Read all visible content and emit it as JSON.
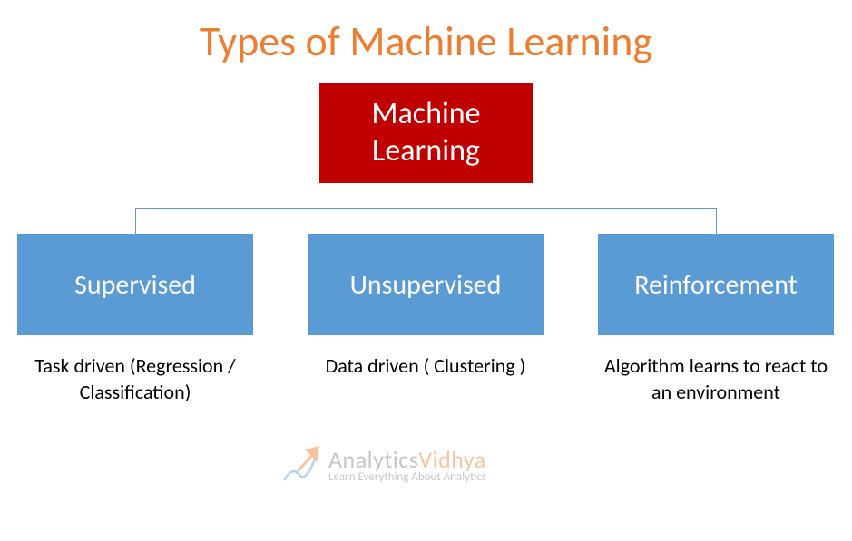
{
  "diagram": {
    "type": "tree",
    "title": "Types of Machine Learning",
    "title_color": "#ed7d31",
    "title_fontsize": 46,
    "background_color": "#ffffff",
    "connector_color": "#5b9bd5",
    "root": {
      "label": "Machine\nLearning",
      "bg_color": "#c00000",
      "text_color": "#ffffff",
      "fontsize": 34
    },
    "children": [
      {
        "label": "Supervised",
        "bg_color": "#5b9bd5",
        "text_color": "#ffffff",
        "fontsize": 30,
        "description": "Task driven (Regression / Classification)",
        "description_color": "#000000"
      },
      {
        "label": "Unsupervised",
        "bg_color": "#5b9bd5",
        "text_color": "#ffffff",
        "fontsize": 30,
        "description": "Data driven ( Clustering )",
        "description_color": "#000000"
      },
      {
        "label": "Reinforcement",
        "bg_color": "#5b9bd5",
        "text_color": "#ffffff",
        "fontsize": 30,
        "description": "Algorithm learns to react to an environment",
        "description_color": "#000000"
      }
    ]
  },
  "watermark": {
    "brand_a": "Analytics",
    "brand_b": "Vidhya",
    "brand_a_color": "#808080",
    "brand_b_color": "#ed7d31",
    "tagline": "Learn Everything About Analytics",
    "arrow_color": "#ed7d31",
    "squiggle_color": "#5b9bd5"
  }
}
